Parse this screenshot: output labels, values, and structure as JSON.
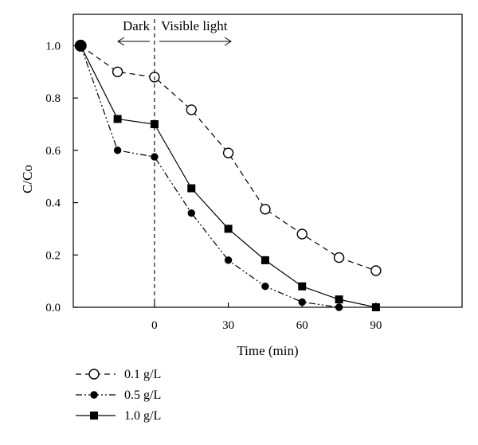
{
  "chart_data": {
    "type": "line",
    "xlabel": "Time (min)",
    "ylabel": "C/Co",
    "xlim": [
      -33,
      125
    ],
    "ylim": [
      0,
      1.12
    ],
    "x_ticks": [
      0,
      30,
      60,
      90
    ],
    "x_tick_labels": [
      "0",
      "30",
      "60",
      "90"
    ],
    "y_ticks": [
      0.0,
      0.2,
      0.4,
      0.6,
      0.8,
      1.0
    ],
    "y_tick_labels": [
      "0.0",
      "0.2",
      "0.4",
      "0.6",
      "0.8",
      "1.0"
    ],
    "grid": false,
    "legend_position": "bottom-left",
    "start_point": {
      "x": -30,
      "y": 1.0
    },
    "annotations": {
      "dark_label": "Dark",
      "visible_label": "Visible light",
      "divider_x": 0
    },
    "series": [
      {
        "name": "0.1 g/L",
        "marker": "open-circle",
        "line_style": "dashed",
        "x": [
          -30,
          -15,
          0,
          15,
          30,
          45,
          60,
          75,
          90
        ],
        "y": [
          1.0,
          0.9,
          0.88,
          0.755,
          0.59,
          0.375,
          0.28,
          0.19,
          0.14
        ]
      },
      {
        "name": "0.5 g/L",
        "marker": "filled-circle",
        "line_style": "dash-dot-dot",
        "x": [
          -30,
          -15,
          0,
          15,
          30,
          45,
          60,
          75
        ],
        "y": [
          1.0,
          0.6,
          0.575,
          0.36,
          0.18,
          0.08,
          0.02,
          0.0
        ]
      },
      {
        "name": "1.0 g/L",
        "marker": "filled-square",
        "line_style": "solid",
        "x": [
          -30,
          -15,
          0,
          15,
          30,
          45,
          60,
          75,
          90
        ],
        "y": [
          1.0,
          0.72,
          0.7,
          0.455,
          0.3,
          0.18,
          0.08,
          0.03,
          0.0
        ]
      }
    ]
  }
}
